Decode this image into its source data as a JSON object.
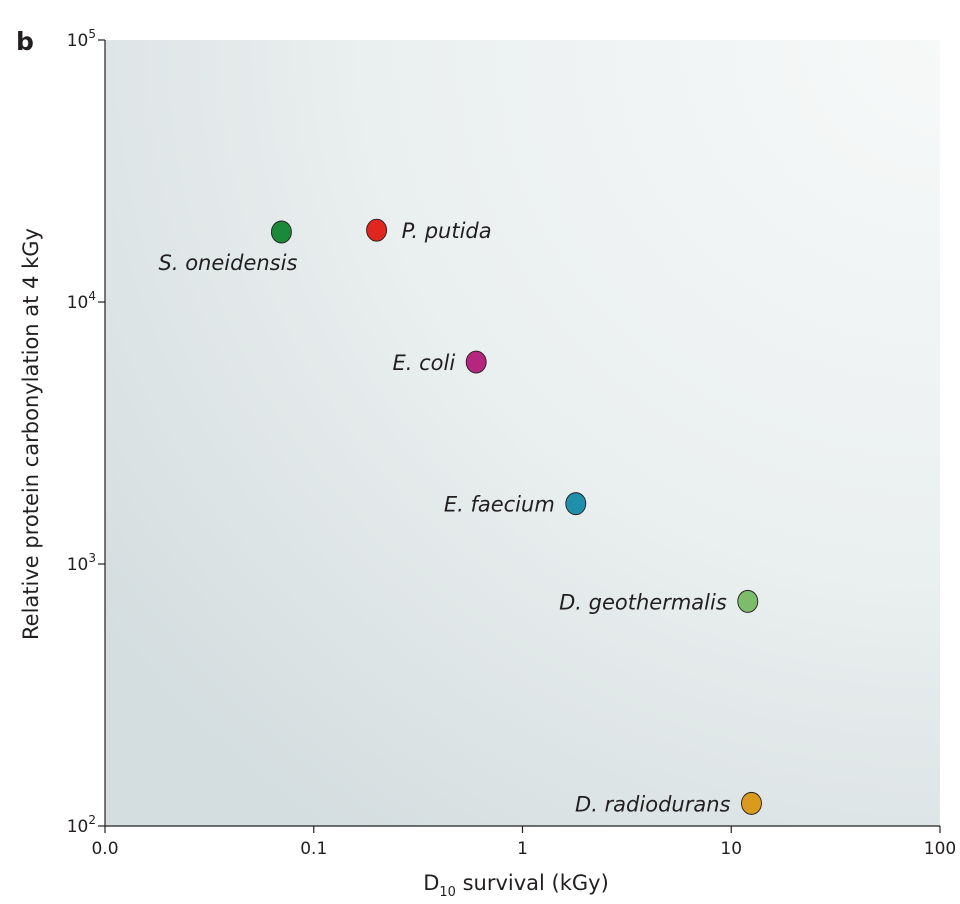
{
  "panel_label": "b",
  "chart_data": {
    "type": "scatter",
    "title": "",
    "xlabel": "D10 survival (kGy)",
    "xlabel_main": "D",
    "xlabel_sub": "10",
    "xlabel_rest": " survival (kGy)",
    "ylabel": "Relative protein carbonylation at 4 kGy",
    "x_scale": "log",
    "y_scale": "log",
    "xlim": [
      0.01,
      100
    ],
    "ylim": [
      100,
      100000
    ],
    "x_ticks": [
      {
        "value": 0.01,
        "label": "0.0"
      },
      {
        "value": 0.1,
        "label": "0.1"
      },
      {
        "value": 1,
        "label": "1"
      },
      {
        "value": 10,
        "label": "10"
      },
      {
        "value": 100,
        "label": "100"
      }
    ],
    "y_ticks": [
      {
        "value": 100,
        "base": "10",
        "exp": "2"
      },
      {
        "value": 1000,
        "base": "10",
        "exp": "3"
      },
      {
        "value": 10000,
        "base": "10",
        "exp": "4"
      },
      {
        "value": 100000,
        "base": "10",
        "exp": "5"
      }
    ],
    "grid": false,
    "points": [
      {
        "name": "S. oneidensis",
        "x": 0.07,
        "y": 18500,
        "color": "#1a8a3a",
        "label_side": "below-left"
      },
      {
        "name": "P. putida",
        "x": 0.2,
        "y": 18800,
        "color": "#e0261f",
        "label_side": "right"
      },
      {
        "name": "E. coli",
        "x": 0.6,
        "y": 5900,
        "color": "#b5267e",
        "label_side": "left"
      },
      {
        "name": "E. faecium",
        "x": 1.8,
        "y": 1700,
        "color": "#1f8fac",
        "label_side": "left"
      },
      {
        "name": "D. geothermalis",
        "x": 12,
        "y": 720,
        "color": "#7cbc6a",
        "label_side": "left"
      },
      {
        "name": "D. radiodurans",
        "x": 12.5,
        "y": 122,
        "color": "#d99a1e",
        "label_side": "left"
      }
    ]
  }
}
